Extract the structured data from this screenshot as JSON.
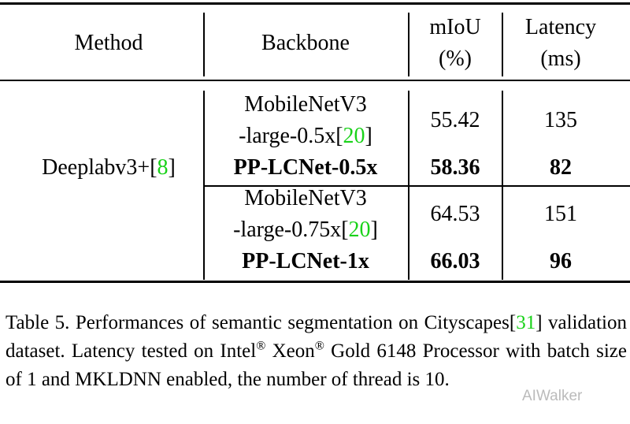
{
  "table": {
    "header": [
      [
        "Method"
      ],
      [
        "Backbone"
      ],
      [
        "mIoU",
        "(%)"
      ],
      [
        "Latency",
        "(ms)"
      ]
    ],
    "method": [
      {
        "text": "Deeplabv3+["
      },
      {
        "text": "8",
        "color": "#19d219"
      },
      {
        "text": "]"
      }
    ],
    "groups": [
      {
        "rows": [
          {
            "backbone": [
              [
                {
                  "text": "MobileNetV3"
                }
              ],
              [
                {
                  "text": "-large-0.5x["
                },
                {
                  "text": "20",
                  "color": "#19d219"
                },
                {
                  "text": "]"
                }
              ]
            ],
            "miou": "55.42",
            "latency": "135"
          },
          {
            "backbone": [
              [
                {
                  "text": "PP-LCNet-0.5x"
                }
              ]
            ],
            "miou": "58.36",
            "latency": "82",
            "bold": true
          }
        ]
      },
      {
        "rows": [
          {
            "backbone": [
              [
                {
                  "text": "MobileNetV3"
                }
              ],
              [
                {
                  "text": "-large-0.75x["
                },
                {
                  "text": "20",
                  "color": "#19d219"
                },
                {
                  "text": "]"
                }
              ]
            ],
            "miou": "64.53",
            "latency": "151"
          },
          {
            "backbone": [
              [
                {
                  "text": "PP-LCNet-1x"
                }
              ]
            ],
            "miou": "66.03",
            "latency": "96",
            "bold": true
          }
        ]
      }
    ]
  },
  "caption": [
    {
      "text": "Table 5. Performances of semantic segmentation on Cityscapes["
    },
    {
      "text": "31",
      "color": "#19d219"
    },
    {
      "text": "] validation dataset. Latency tested on Intel"
    },
    {
      "text": "®",
      "sup": true
    },
    {
      "text": " Xeon"
    },
    {
      "text": "®",
      "sup": true
    },
    {
      "text": " Gold 6148 Processor with batch size of 1 and MKLDNN enabled, the number of thread is 10."
    }
  ],
  "watermark": "AIWalker"
}
